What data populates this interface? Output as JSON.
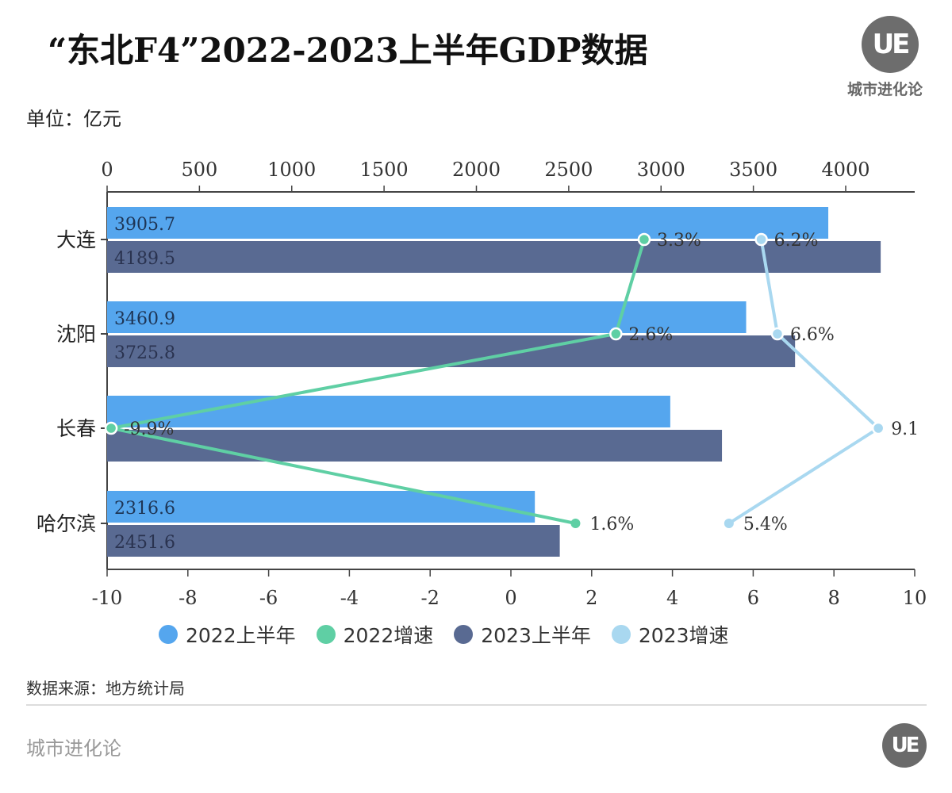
{
  "header": {
    "title": "“东北F4”2022-2023上半年GDP数据",
    "unit": "单位：亿元",
    "logo_mark": "UE",
    "logo_text": "城市进化论"
  },
  "footer": {
    "source": "数据来源：地方统计局",
    "brand": "城市进化论",
    "logo_mark": "UE"
  },
  "colors": {
    "gdp2022": "#55a6ee",
    "growth2022": "#5fcfa4",
    "gdp2023": "#596a92",
    "growth2023": "#a9d8f0",
    "axis": "#444444"
  },
  "chart_data": {
    "type": "bar",
    "orientation": "horizontal",
    "title": "“东北F4”2022-2023上半年GDP数据",
    "unit": "亿元",
    "categories": [
      "大连",
      "沈阳",
      "长春",
      "哈尔滨"
    ],
    "series": [
      {
        "name": "2022上半年",
        "kind": "bar",
        "axis": "top",
        "values": [
          3905.7,
          3460.9,
          3050,
          2316.6
        ],
        "labels": [
          "3905.7",
          "3460.9",
          "",
          "2316.6"
        ]
      },
      {
        "name": "2023上半年",
        "kind": "bar",
        "axis": "top",
        "values": [
          4189.5,
          3725.8,
          3330,
          2451.6
        ],
        "labels": [
          "4189.5",
          "3725.8",
          "",
          "2451.6"
        ]
      },
      {
        "name": "2022增速",
        "kind": "line",
        "axis": "bottom",
        "values": [
          3.3,
          2.6,
          -9.9,
          1.6
        ],
        "labels": [
          "3.3%",
          "2.6%",
          "-9.9%",
          "1.6%"
        ]
      },
      {
        "name": "2023增速",
        "kind": "line",
        "axis": "bottom",
        "values": [
          6.2,
          6.6,
          9.1,
          5.4
        ],
        "labels": [
          "6.2%",
          "6.6%",
          "9.1",
          "5.4%"
        ]
      }
    ],
    "top_axis": {
      "range": [
        0,
        4000
      ],
      "ticks": [
        "0",
        "500",
        "1000",
        "1500",
        "2000",
        "2500",
        "3000",
        "3500",
        "4000"
      ]
    },
    "bottom_axis": {
      "range": [
        -10,
        10
      ],
      "ticks": [
        "-10",
        "-8",
        "-6",
        "-4",
        "-2",
        "0",
        "2",
        "4",
        "6",
        "8",
        "10"
      ]
    },
    "legend": {
      "position": "bottom",
      "entries": [
        "2022上半年",
        "2022增速",
        "2023上半年",
        "2023增速"
      ]
    },
    "grid": false
  }
}
